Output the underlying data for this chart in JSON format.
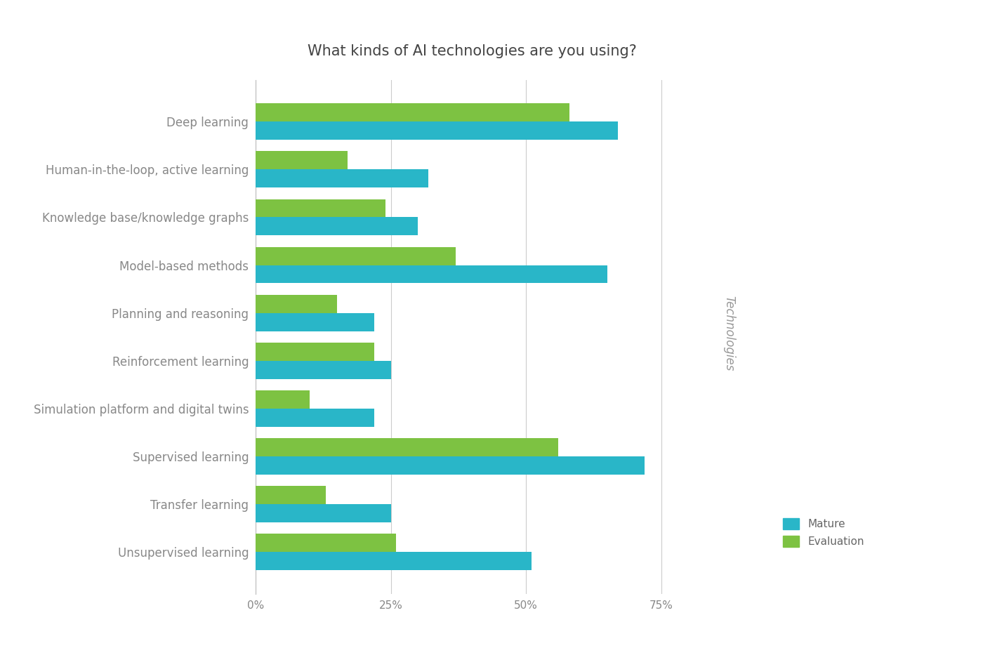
{
  "title": "What kinds of AI technologies are you using?",
  "categories": [
    "Deep learning",
    "Human-in-the-loop, active learning",
    "Knowledge base/knowledge graphs",
    "Model-based methods",
    "Planning and reasoning",
    "Reinforcement learning",
    "Simulation platform and digital twins",
    "Supervised learning",
    "Transfer learning",
    "Unsupervised learning"
  ],
  "mature": [
    67,
    32,
    30,
    65,
    22,
    25,
    22,
    72,
    25,
    51
  ],
  "evaluation": [
    58,
    17,
    24,
    37,
    15,
    22,
    10,
    56,
    13,
    26
  ],
  "color_mature": "#29b6c8",
  "color_evaluation": "#7dc242",
  "background_color": "#ffffff",
  "title_fontsize": 15,
  "label_fontsize": 12,
  "tick_fontsize": 11,
  "xlim": [
    0,
    80
  ],
  "xticks": [
    0,
    25,
    50,
    75
  ],
  "xtick_labels": [
    "0%",
    "25%",
    "50%",
    "75%"
  ],
  "ylabel_text": "Technologies",
  "legend_labels": [
    "Mature",
    "Evaluation"
  ]
}
